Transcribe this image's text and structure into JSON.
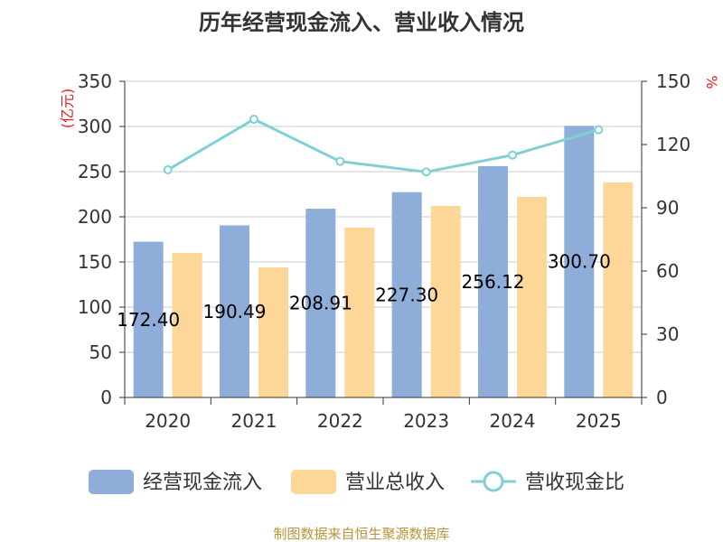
{
  "title": "历年经营现金流入、营业收入情况",
  "source": "制图数据来自恒生聚源数据库",
  "colors": {
    "cash_inflow": "#8EADD9",
    "revenue": "#FDD797",
    "ratio": "#7FD0D4",
    "unit_text": "#E02020",
    "source_text": "#B8943C",
    "grid": "#CCCCCC",
    "axis": "#333333"
  },
  "chart_data": {
    "type": "bar",
    "categories": [
      "2020",
      "2021",
      "2022",
      "2023",
      "2024",
      "2025"
    ],
    "series": [
      {
        "name": "经营现金流入",
        "type": "bar",
        "axis": "left",
        "values": [
          172.4,
          190.49,
          208.91,
          227.3,
          256.12,
          300.7
        ],
        "labels": [
          "172.40",
          "190.49",
          "208.91",
          "227.30",
          "256.12",
          "300.70"
        ]
      },
      {
        "name": "营业总收入",
        "type": "bar",
        "axis": "left",
        "values": [
          160,
          144,
          188,
          212,
          222,
          238
        ]
      },
      {
        "name": "营收现金比",
        "type": "line",
        "axis": "right",
        "values": [
          108,
          132,
          112,
          107,
          115,
          127
        ]
      }
    ],
    "left_axis": {
      "label": "(亿元)",
      "min": 0,
      "max": 350,
      "ticks": [
        "0",
        "50",
        "100",
        "150",
        "200",
        "250",
        "300",
        "350"
      ]
    },
    "right_axis": {
      "label": "%",
      "min": 0,
      "max": 150,
      "ticks": [
        "0",
        "30",
        "60",
        "90",
        "120",
        "150"
      ]
    },
    "grid": true,
    "legend_position": "bottom"
  }
}
